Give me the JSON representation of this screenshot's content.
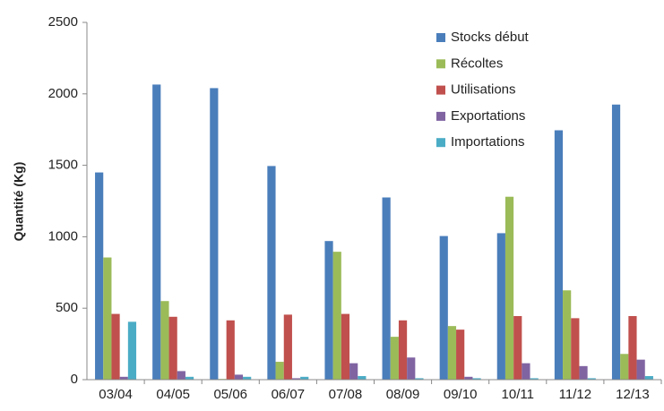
{
  "chart_data": {
    "type": "bar",
    "ylabel": "Quantité (Kg)",
    "categories": [
      "03/04",
      "04/05",
      "05/06",
      "06/07",
      "07/08",
      "08/09",
      "09/10",
      "10/11",
      "11/12",
      "12/13"
    ],
    "series": [
      {
        "name": "Stocks début",
        "color": "#4a7ebb",
        "values": [
          1450,
          2065,
          2040,
          1495,
          970,
          1275,
          1005,
          1025,
          1745,
          1925
        ]
      },
      {
        "name": "Récoltes",
        "color": "#9bbb59",
        "values": [
          855,
          550,
          5,
          125,
          895,
          300,
          375,
          1280,
          625,
          180
        ]
      },
      {
        "name": "Utilisations",
        "color": "#c0504d",
        "values": [
          460,
          440,
          415,
          455,
          460,
          415,
          350,
          445,
          430,
          445
        ]
      },
      {
        "name": "Exportations",
        "color": "#8064a2",
        "values": [
          20,
          60,
          35,
          10,
          115,
          155,
          20,
          115,
          95,
          140
        ]
      },
      {
        "name": "Importations",
        "color": "#4bacc6",
        "values": [
          405,
          20,
          20,
          20,
          25,
          10,
          10,
          10,
          10,
          25
        ]
      }
    ],
    "ylim": [
      0,
      2500
    ],
    "yticks": [
      0,
      500,
      1000,
      1500,
      2000,
      2500
    ],
    "grid": false,
    "legend": "upper right"
  }
}
